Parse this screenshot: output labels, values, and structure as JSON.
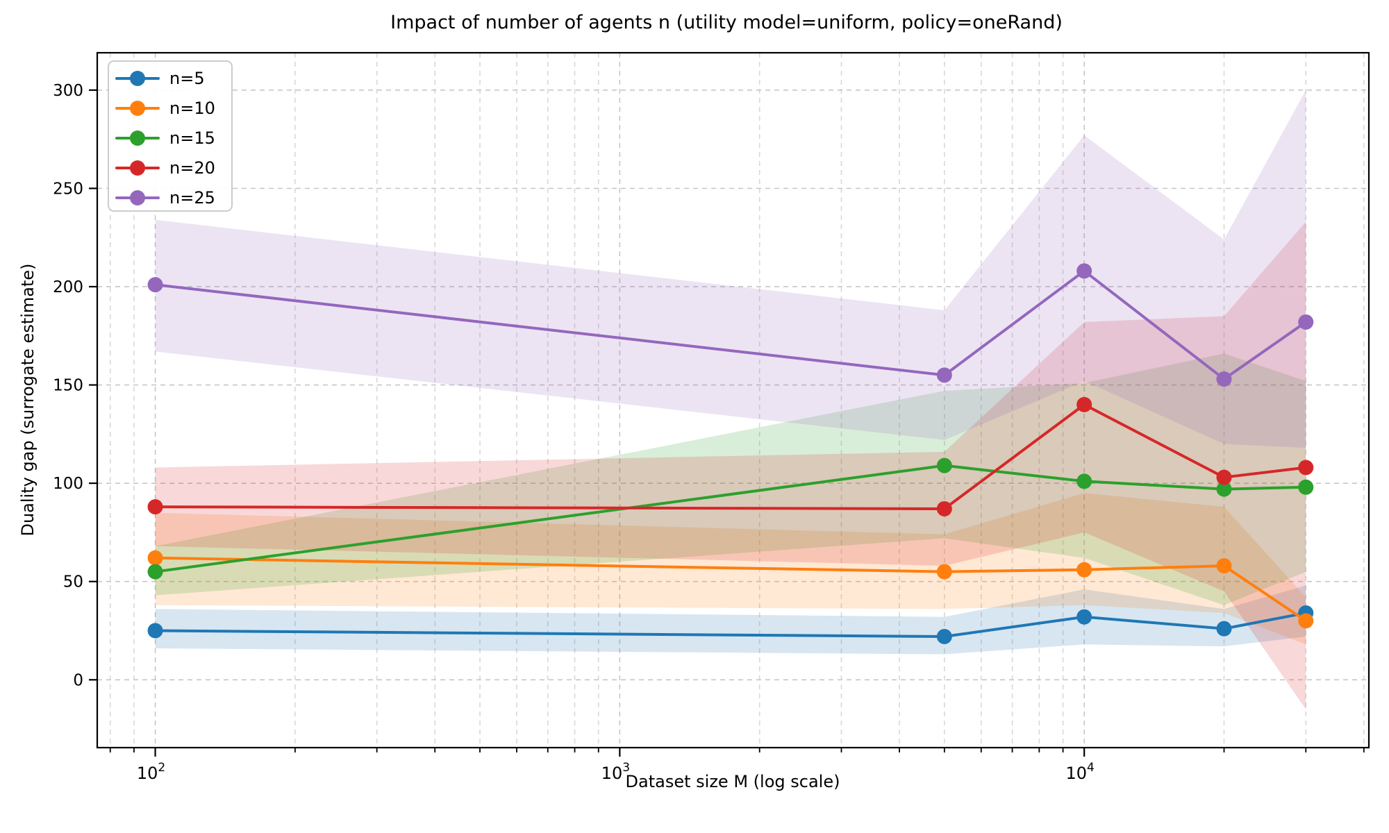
{
  "title": "Impact of number of agents n (utility model=uniform, policy=oneRand)",
  "chart_data": {
    "type": "line",
    "title": "Impact of number of agents n (utility model=uniform, policy=oneRand)",
    "xlabel": "Dataset size M (log scale)",
    "ylabel": "Duality gap (surrogate estimate)",
    "x_scale": "log",
    "grid": true,
    "legend_position": "upper left",
    "x": [
      100,
      5000,
      10000,
      20000,
      30000
    ],
    "xlim": [
      75,
      41000
    ],
    "ylim": [
      -34.5,
      319
    ],
    "yticks": [
      0,
      50,
      100,
      150,
      200,
      250,
      300
    ],
    "xticks_major": [
      {
        "value": 100,
        "base": "10",
        "exp": "2"
      },
      {
        "value": 1000,
        "base": "10",
        "exp": "3"
      },
      {
        "value": 10000,
        "base": "10",
        "exp": "4"
      }
    ],
    "xticks_minor": [
      80,
      90,
      200,
      300,
      400,
      500,
      600,
      700,
      800,
      900,
      2000,
      3000,
      4000,
      5000,
      6000,
      7000,
      8000,
      9000,
      20000,
      30000,
      40000
    ],
    "band_opacity": 0.18,
    "series": [
      {
        "name": "n=5",
        "color": "#1f77b4",
        "values": [
          25,
          22,
          32,
          26,
          34
        ],
        "band_low": [
          16,
          13,
          18,
          17,
          22
        ],
        "band_high": [
          36,
          32,
          46,
          36,
          48
        ]
      },
      {
        "name": "n=10",
        "color": "#ff7f0e",
        "values": [
          62,
          55,
          56,
          58,
          30
        ],
        "band_low": [
          38,
          36,
          38,
          34,
          18
        ],
        "band_high": [
          85,
          74,
          95,
          88,
          42
        ]
      },
      {
        "name": "n=15",
        "color": "#2ca02c",
        "values": [
          55,
          109,
          101,
          97,
          98
        ],
        "band_low": [
          43,
          72,
          62,
          38,
          55
        ],
        "band_high": [
          68,
          147,
          151,
          166,
          152
        ]
      },
      {
        "name": "n=20",
        "color": "#d62728",
        "values": [
          88,
          87,
          140,
          103,
          108
        ],
        "band_low": [
          68,
          58,
          75,
          45,
          -15
        ],
        "band_high": [
          108,
          116,
          182,
          185,
          233
        ]
      },
      {
        "name": "n=25",
        "color": "#9467bd",
        "values": [
          201,
          155,
          208,
          153,
          182
        ],
        "band_low": [
          167,
          122,
          152,
          120,
          118
        ],
        "band_high": [
          234,
          188,
          277,
          224,
          300
        ]
      }
    ]
  },
  "style": {
    "grid_major_color": "#c6c6c6",
    "grid_minor_color": "#d8d8d8",
    "spine_color": "#000000",
    "legend_border_color": "#cccccc",
    "legend_bg_color": "#ffffff"
  }
}
